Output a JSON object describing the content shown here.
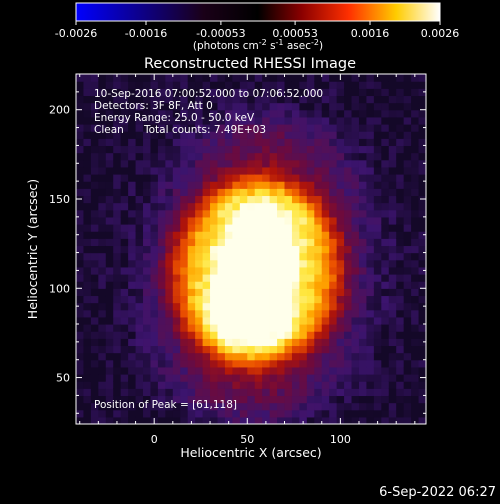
{
  "colorbar": {
    "tick_labels": [
      "-0.0026",
      "-0.0016",
      "-0.00053",
      "0.00053",
      "0.0016",
      "0.0026"
    ],
    "tick_values": [
      -0.0026,
      -0.0016,
      -0.00053,
      0.00053,
      0.0016,
      0.0026
    ],
    "range": [
      -0.0026,
      0.0026
    ],
    "unit_main": "(photons cm",
    "unit_sup1": "-2",
    "unit_mid": " s",
    "unit_sup2": "-1",
    "unit_end": " asec",
    "unit_sup3": "-2",
    "unit_close": ")",
    "colors": [
      "#0000ff",
      "#000000",
      "#8b0000",
      "#ff4500",
      "#ffd700",
      "#ffffff"
    ]
  },
  "overlay": {
    "line1": "10-Sep-2016 07:00:52.000 to 07:06:52.000",
    "line2": "Detectors: 3F 8F, Att 0",
    "line3": "Energy Range: 25.0 - 50.0 keV",
    "line4_a": "Clean",
    "line4_b": "Total counts: 7.49E+03",
    "peak": "Position of Peak = [61,118]"
  },
  "timestamp": "6-Sep-2022 06:27",
  "chart_data": {
    "type": "heatmap",
    "title": "Reconstructed RHESSI Image",
    "xlabel": "Heliocentric X (arcsec)",
    "ylabel": "Heliocentric Y (arcsec)",
    "xlim": [
      -42,
      146
    ],
    "ylim": [
      24,
      220
    ],
    "xticks": [
      0,
      50,
      100
    ],
    "yticks": [
      50,
      100,
      150,
      200
    ],
    "xtick_labels": [
      "0",
      "50",
      "100"
    ],
    "ytick_labels": [
      "50",
      "100",
      "150",
      "200"
    ],
    "peak_position": [
      61,
      118
    ],
    "value_range": [
      -0.0026,
      0.0026
    ],
    "sources": [
      {
        "x": 61,
        "y": 118,
        "value": 0.0026
      },
      {
        "x": 48,
        "y": 98,
        "value": 0.0024
      }
    ],
    "grid": false
  }
}
